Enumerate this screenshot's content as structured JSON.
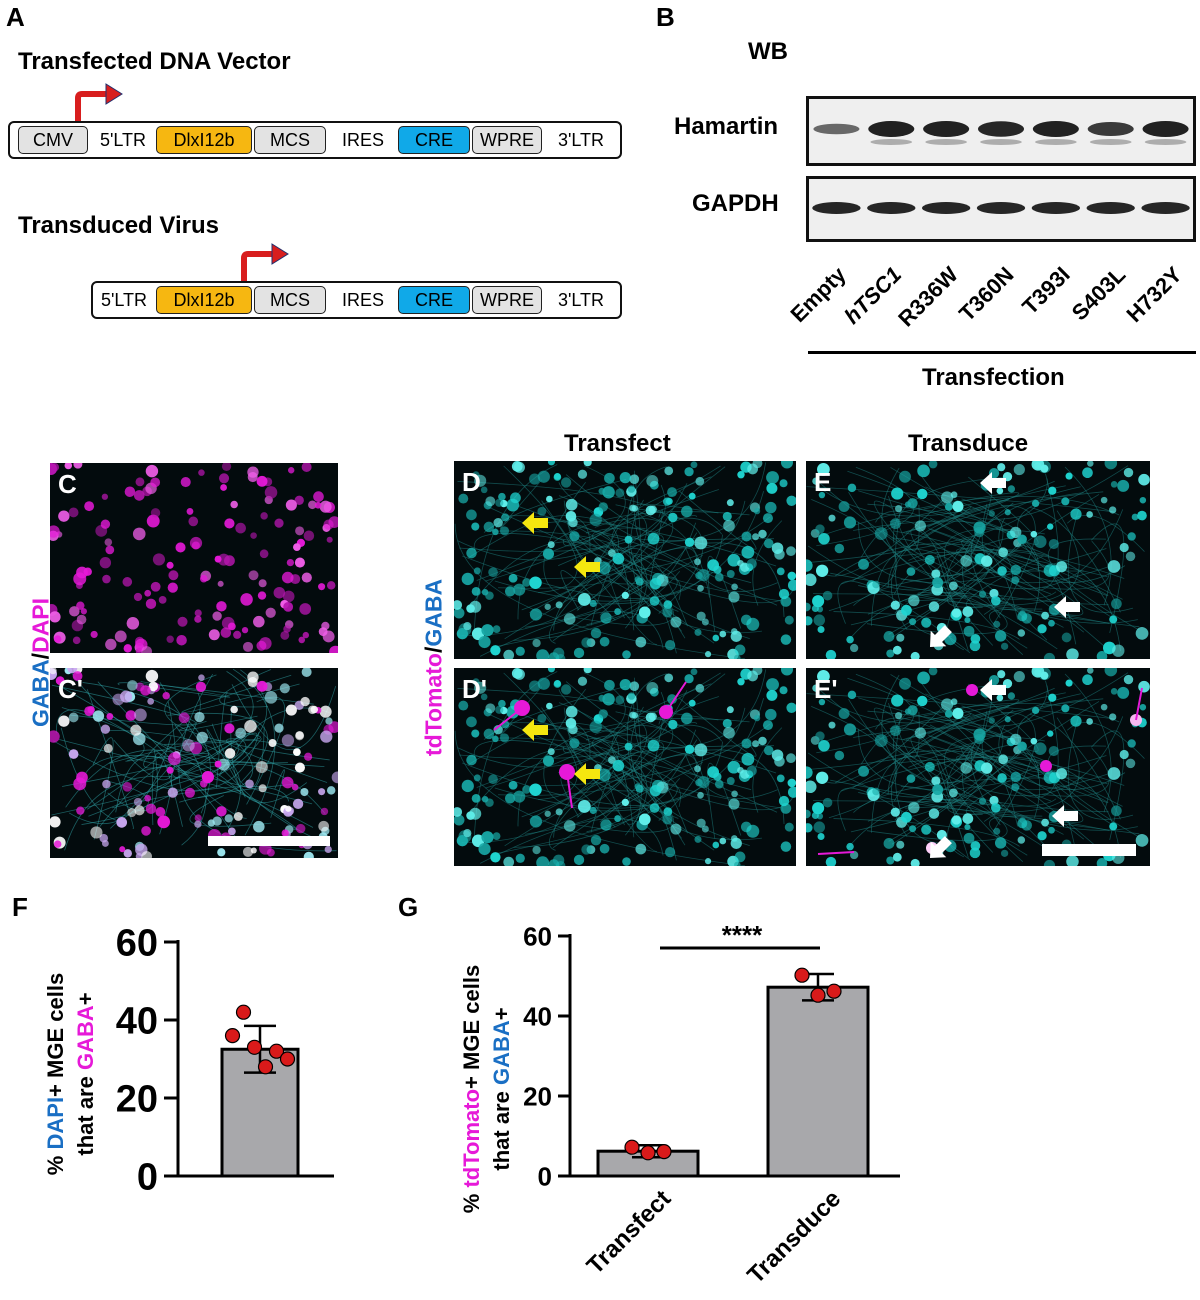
{
  "panel_a": {
    "letter": "A",
    "vector1_title": "Transfected DNA Vector",
    "vector1_segments": [
      "CMV",
      "5'LTR",
      "DlxI12b",
      "MCS",
      "IRES",
      "CRE",
      "WPRE",
      "3'LTR"
    ],
    "vector2_title": "Transduced Virus",
    "vector2_segments": [
      "5'LTR",
      "DlxI12b",
      "MCS",
      "IRES",
      "CRE",
      "WPRE",
      "3'LTR"
    ]
  },
  "panel_b": {
    "letter": "B",
    "method": "WB",
    "row1_label": "Hamartin",
    "row2_label": "GAPDH",
    "lanes": [
      "Empty",
      "hTSC1",
      "R336W",
      "T360N",
      "T393I",
      "S403L",
      "H732Y"
    ],
    "group_label": "Transfection"
  },
  "panel_images": {
    "col_transfect": "Transfect",
    "col_transduce": "Transduce",
    "labels": {
      "c": "C",
      "c_prime": "C'",
      "d": "D",
      "d_prime": "D'",
      "e": "E",
      "e_prime": "E'"
    },
    "side_label_c": {
      "part1": "GABA",
      "sep": "/",
      "part2": "DAPI"
    },
    "side_label_d": {
      "part1": "tdTomato",
      "sep": "/",
      "part2": "GABA"
    },
    "colors": {
      "magenta": "#e619d8",
      "cyan": "#1fd6d2",
      "yellow_arrow": "#f5e70f",
      "white_arrow": "#ffffff"
    }
  },
  "panel_f": {
    "letter": "F",
    "ylabel_line1": {
      "pre": "% ",
      "c1": "DAPI",
      "post": "+ MGE cells"
    },
    "ylabel_line2": {
      "pre": "that are ",
      "c1": "GABA",
      "post": "+"
    },
    "ticks": [
      "0",
      "20",
      "40",
      "60"
    ]
  },
  "panel_g": {
    "letter": "G",
    "ylabel_line1": {
      "pre": "% ",
      "c1": "tdTomato",
      "post": "+ MGE cells"
    },
    "ylabel_line2": {
      "pre": "that are ",
      "c1": "GABA",
      "post": "+"
    },
    "ticks": [
      "0",
      "20",
      "40",
      "60"
    ],
    "significance": "****"
  },
  "chart_data": [
    {
      "type": "bar",
      "panel": "F",
      "categories": [
        ""
      ],
      "values": [
        32.5
      ],
      "error": [
        6
      ],
      "points": [
        [
          36,
          42,
          33,
          28,
          32,
          30
        ]
      ],
      "ylim": [
        0,
        60
      ],
      "ylabel": "% DAPI+ MGE cells that are GABA+",
      "colors": {
        "bar": "#a8a8ab",
        "point": "#d91a1a"
      }
    },
    {
      "type": "bar",
      "panel": "G",
      "categories": [
        "Transfect",
        "Transduce"
      ],
      "values": [
        6.2,
        47.2
      ],
      "error": [
        1.5,
        3.3
      ],
      "points": [
        [
          7.2,
          5.8,
          6.1
        ],
        [
          50.2,
          45.2,
          46.2
        ]
      ],
      "ylim": [
        0,
        60
      ],
      "ylabel": "% tdTomato+ MGE cells that are GABA+",
      "colors": {
        "bar": "#a8a8ab",
        "point": "#d91a1a"
      }
    }
  ]
}
